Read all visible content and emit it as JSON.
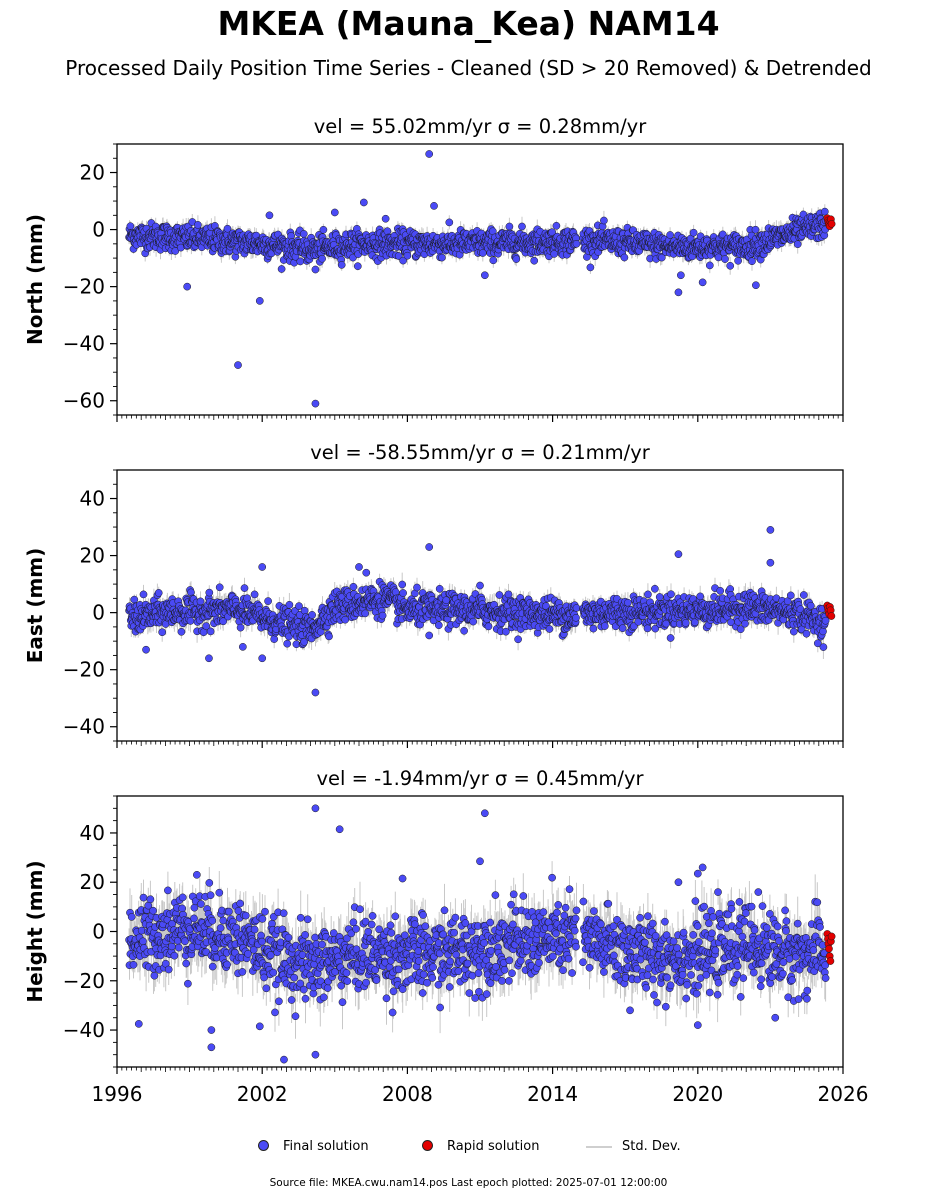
{
  "title": "MKEA (Mauna_Kea) NAM14",
  "subtitle": "Processed Daily Position Time Series - Cleaned (SD > 20 Removed) & Detrended",
  "legend": {
    "final": "Final solution",
    "rapid": "Rapid solution",
    "std": "Std. Dev."
  },
  "footer": "Source file: MKEA.cwu.nam14.pos  Last epoch plotted: 2025-07-01 12:00:00",
  "colors": {
    "final": "#4a4af5",
    "rapid": "#e30000",
    "std": "#c8c8c8",
    "edge": "#1a1a1a"
  },
  "chart_data": [
    {
      "type": "scatter",
      "component": "north",
      "title": "vel = 55.02mm/yr   σ = 0.28mm/yr",
      "ylabel": "North (mm)",
      "xlim": [
        1996,
        2026
      ],
      "ylim": [
        -65,
        30
      ],
      "yticks": [
        20,
        0,
        -20,
        -40,
        -60
      ],
      "gap": [
        2015.0,
        2015.25
      ],
      "noise_sd": 2.3,
      "trend": [
        [
          1996.5,
          -2
        ],
        [
          1999,
          -3
        ],
        [
          2002,
          -5
        ],
        [
          2004,
          -7
        ],
        [
          2006,
          -5
        ],
        [
          2010,
          -5
        ],
        [
          2015,
          -4
        ],
        [
          2016,
          -4
        ],
        [
          2019,
          -6
        ],
        [
          2022,
          -6
        ],
        [
          2024,
          -1
        ],
        [
          2025.3,
          2
        ]
      ],
      "outliers": [
        [
          2008.9,
          26.5
        ],
        [
          2009.1,
          8.3
        ],
        [
          2006.2,
          9.5
        ],
        [
          2007.1,
          3.8
        ],
        [
          2005.0,
          6.0
        ],
        [
          2002.3,
          5.0
        ],
        [
          1998.9,
          -20
        ],
        [
          2001.9,
          -25
        ],
        [
          2001.0,
          -47.5
        ],
        [
          2004.2,
          -61
        ],
        [
          2019.2,
          -22
        ],
        [
          2020.2,
          -18.5
        ],
        [
          2019.3,
          -16
        ],
        [
          2022.4,
          -19.5
        ],
        [
          2011.2,
          -16
        ],
        [
          2004.2,
          -14
        ]
      ],
      "rapid": [
        [
          2025.35,
          4.0
        ],
        [
          2025.38,
          3.2
        ],
        [
          2025.4,
          2.6
        ],
        [
          2025.42,
          1.8
        ],
        [
          2025.45,
          1.2
        ],
        [
          2025.48,
          2.8
        ],
        [
          2025.5,
          3.6
        ],
        [
          2025.53,
          2.0
        ]
      ]
    },
    {
      "type": "scatter",
      "component": "east",
      "title": "vel = -58.55mm/yr   σ = 0.21mm/yr",
      "ylabel": "East (mm)",
      "xlim": [
        1996,
        2026
      ],
      "ylim": [
        -45,
        50
      ],
      "yticks": [
        40,
        20,
        0,
        -20,
        -40
      ],
      "gap": [
        2015.0,
        2015.25
      ],
      "noise_sd": 2.8,
      "trend": [
        [
          1996.5,
          -2
        ],
        [
          1998,
          0
        ],
        [
          2001,
          1
        ],
        [
          2002.5,
          -3
        ],
        [
          2004,
          -6
        ],
        [
          2005,
          2
        ],
        [
          2007,
          5
        ],
        [
          2008,
          1
        ],
        [
          2010,
          1
        ],
        [
          2014.9,
          -1
        ],
        [
          2016,
          0
        ],
        [
          2021,
          1
        ],
        [
          2022,
          2
        ],
        [
          2024,
          0
        ],
        [
          2025.3,
          -4
        ]
      ],
      "outliers": [
        [
          2008.9,
          23
        ],
        [
          2019.2,
          20.5
        ],
        [
          2023.0,
          29
        ],
        [
          2023.0,
          17.5
        ],
        [
          2002.0,
          16
        ],
        [
          2006.0,
          16
        ],
        [
          2006.3,
          14
        ],
        [
          2011.0,
          9.5
        ],
        [
          2004.2,
          -28
        ],
        [
          2002.0,
          -16
        ],
        [
          1999.8,
          -16
        ],
        [
          2001.2,
          -12
        ],
        [
          1997.2,
          -13
        ],
        [
          2008.9,
          -8
        ]
      ],
      "rapid": [
        [
          2025.35,
          2.5
        ],
        [
          2025.38,
          1.5
        ],
        [
          2025.4,
          0.5
        ],
        [
          2025.43,
          -0.5
        ],
        [
          2025.46,
          2.0
        ],
        [
          2025.49,
          0.8
        ],
        [
          2025.52,
          -1.2
        ]
      ]
    },
    {
      "type": "scatter",
      "component": "height",
      "title": "vel = -1.94mm/yr   σ = 0.45mm/yr",
      "ylabel": "Height (mm)",
      "xlim": [
        1996,
        2026
      ],
      "ylim": [
        -55,
        55
      ],
      "yticks": [
        40,
        20,
        0,
        -20,
        -40
      ],
      "gap": [
        2015.0,
        2015.25
      ],
      "noise_sd": 7.5,
      "trend": [
        [
          1996.5,
          -4
        ],
        [
          1999,
          2
        ],
        [
          2001,
          -2
        ],
        [
          2002.5,
          -10
        ],
        [
          2004,
          -14
        ],
        [
          2006,
          -9
        ],
        [
          2009,
          -10
        ],
        [
          2012,
          -5
        ],
        [
          2014.9,
          -2
        ],
        [
          2016,
          -5
        ],
        [
          2018,
          -10
        ],
        [
          2020,
          -10
        ],
        [
          2022,
          -5
        ],
        [
          2024,
          -10
        ],
        [
          2025.3,
          -8
        ]
      ],
      "outliers": [
        [
          2004.2,
          50
        ],
        [
          2005.2,
          41.5
        ],
        [
          2011.2,
          48
        ],
        [
          2011.0,
          28.5
        ],
        [
          2007.8,
          21.5
        ],
        [
          2020.2,
          26
        ],
        [
          2020.0,
          23.5
        ],
        [
          1999.3,
          23
        ],
        [
          2019.2,
          20
        ],
        [
          2022.5,
          16
        ],
        [
          1999.9,
          -47
        ],
        [
          1999.9,
          -40
        ],
        [
          2002.9,
          -52
        ],
        [
          2004.2,
          -50
        ],
        [
          2001.9,
          -38.5
        ],
        [
          2020.0,
          -38
        ],
        [
          2023.2,
          -35
        ],
        [
          1996.9,
          -37.5
        ],
        [
          2010.8,
          -27
        ],
        [
          2017.2,
          -32
        ]
      ],
      "rapid": [
        [
          2025.35,
          -1.0
        ],
        [
          2025.38,
          -3.0
        ],
        [
          2025.4,
          -5.0
        ],
        [
          2025.42,
          -7.0
        ],
        [
          2025.45,
          -10.0
        ],
        [
          2025.48,
          -12.0
        ],
        [
          2025.5,
          -4.0
        ],
        [
          2025.53,
          -2.0
        ]
      ]
    }
  ],
  "x_tick_labels": [
    "1996",
    "2002",
    "2008",
    "2014",
    "2020",
    "2026"
  ]
}
